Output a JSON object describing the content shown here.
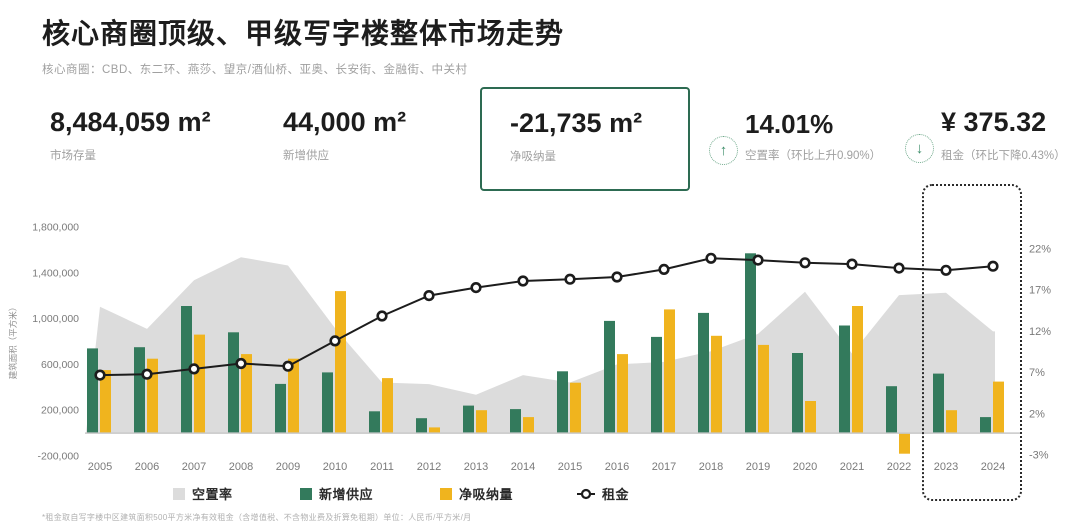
{
  "page": {
    "title": "核心商圈顶级、甲级写字楼整体市场走势",
    "subtitle": "核心商圈：CBD、东二环、燕莎、望京/酒仙桥、亚奥、长安街、金融街、中关村"
  },
  "kpis": {
    "stock": {
      "value": "8,484,059 m²",
      "label": "市场存量"
    },
    "new_supply": {
      "value": "44,000 m²",
      "label": "新增供应"
    },
    "net_absorption": {
      "value": "-21,735 m²",
      "label": "净吸纳量"
    },
    "vacancy": {
      "value": "14.01%",
      "label": "空置率（环比上升0.90%）",
      "trend": "up",
      "trend_glyph": "↑"
    },
    "rent": {
      "value": "¥ 375.32",
      "label": "租金（环比下降0.43%）",
      "trend": "down",
      "trend_glyph": "↓"
    }
  },
  "legend": {
    "items": [
      {
        "label": "空置率",
        "type": "area",
        "color": "#dcdcdc"
      },
      {
        "label": "新增供应",
        "type": "bar",
        "color": "#337a5c"
      },
      {
        "label": "净吸纳量",
        "type": "bar",
        "color": "#f0b41e"
      },
      {
        "label": "租金",
        "type": "line",
        "color": "#1c1c1c"
      }
    ]
  },
  "footnote": "*租金取自写字楼中区建筑面积500平方米净有效租金（含增值税、不含物业费及折算免租期）单位：人民币/平方米/月",
  "colors": {
    "green": "#337a5c",
    "yellow": "#f0b41e",
    "gray_area": "#dcdcdc",
    "line": "#1c1c1c",
    "accent_green": "#2d6b52",
    "axis_text": "#7a7a7a",
    "baseline": "#c8c8c8"
  },
  "chart_data": {
    "type": "combo",
    "x": [
      2005,
      2006,
      2007,
      2008,
      2009,
      2010,
      2011,
      2012,
      2013,
      2014,
      2015,
      2016,
      2017,
      2018,
      2019,
      2020,
      2021,
      2022,
      2023,
      2024
    ],
    "series": [
      {
        "name": "空置率",
        "type": "area",
        "axis": "right_percent",
        "color": "#dcdcdc",
        "values": [
          15.0,
          12.3,
          18.2,
          21.0,
          20.0,
          12.4,
          5.8,
          5.6,
          4.3,
          6.7,
          5.8,
          8.0,
          8.3,
          9.6,
          11.7,
          16.8,
          9.3,
          16.4,
          16.7,
          12.0
        ]
      },
      {
        "name": "新增供应",
        "type": "bar",
        "axis": "left_sqm",
        "color": "#337a5c",
        "values": [
          740000,
          750000,
          1110000,
          880000,
          430000,
          530000,
          190000,
          130000,
          240000,
          210000,
          540000,
          980000,
          840000,
          1050000,
          1570000,
          700000,
          940000,
          410000,
          520000,
          140000
        ]
      },
      {
        "name": "净吸纳量",
        "type": "bar",
        "axis": "left_sqm",
        "color": "#f0b41e",
        "values": [
          550000,
          650000,
          860000,
          690000,
          650000,
          1240000,
          480000,
          50000,
          200000,
          140000,
          440000,
          690000,
          1080000,
          850000,
          770000,
          280000,
          1110000,
          -180000,
          200000,
          450000
        ]
      },
      {
        "name": "租金",
        "type": "line",
        "axis": "hidden_rent",
        "color": "#1c1c1c",
        "values": [
          130,
          132,
          144,
          156,
          150,
          207,
          263,
          309,
          327,
          342,
          346,
          351,
          368,
          393,
          389,
          383,
          380,
          371,
          366,
          375.32
        ]
      }
    ],
    "y_left": {
      "label": "建筑面积（平方米）",
      "range": [
        -200000,
        1800000
      ],
      "ticks": [
        -200000,
        200000,
        600000,
        1000000,
        1400000,
        1800000
      ]
    },
    "y_right": {
      "range": [
        -3,
        22
      ],
      "ticks": [
        -3,
        2,
        7,
        12,
        17,
        22
      ],
      "tick_suffix": "%"
    },
    "rent_axis_hidden_range": [
      -50,
      414
    ],
    "legend_position": "bottom",
    "grid": false,
    "highlight_box_years": [
      2023,
      2024
    ]
  }
}
